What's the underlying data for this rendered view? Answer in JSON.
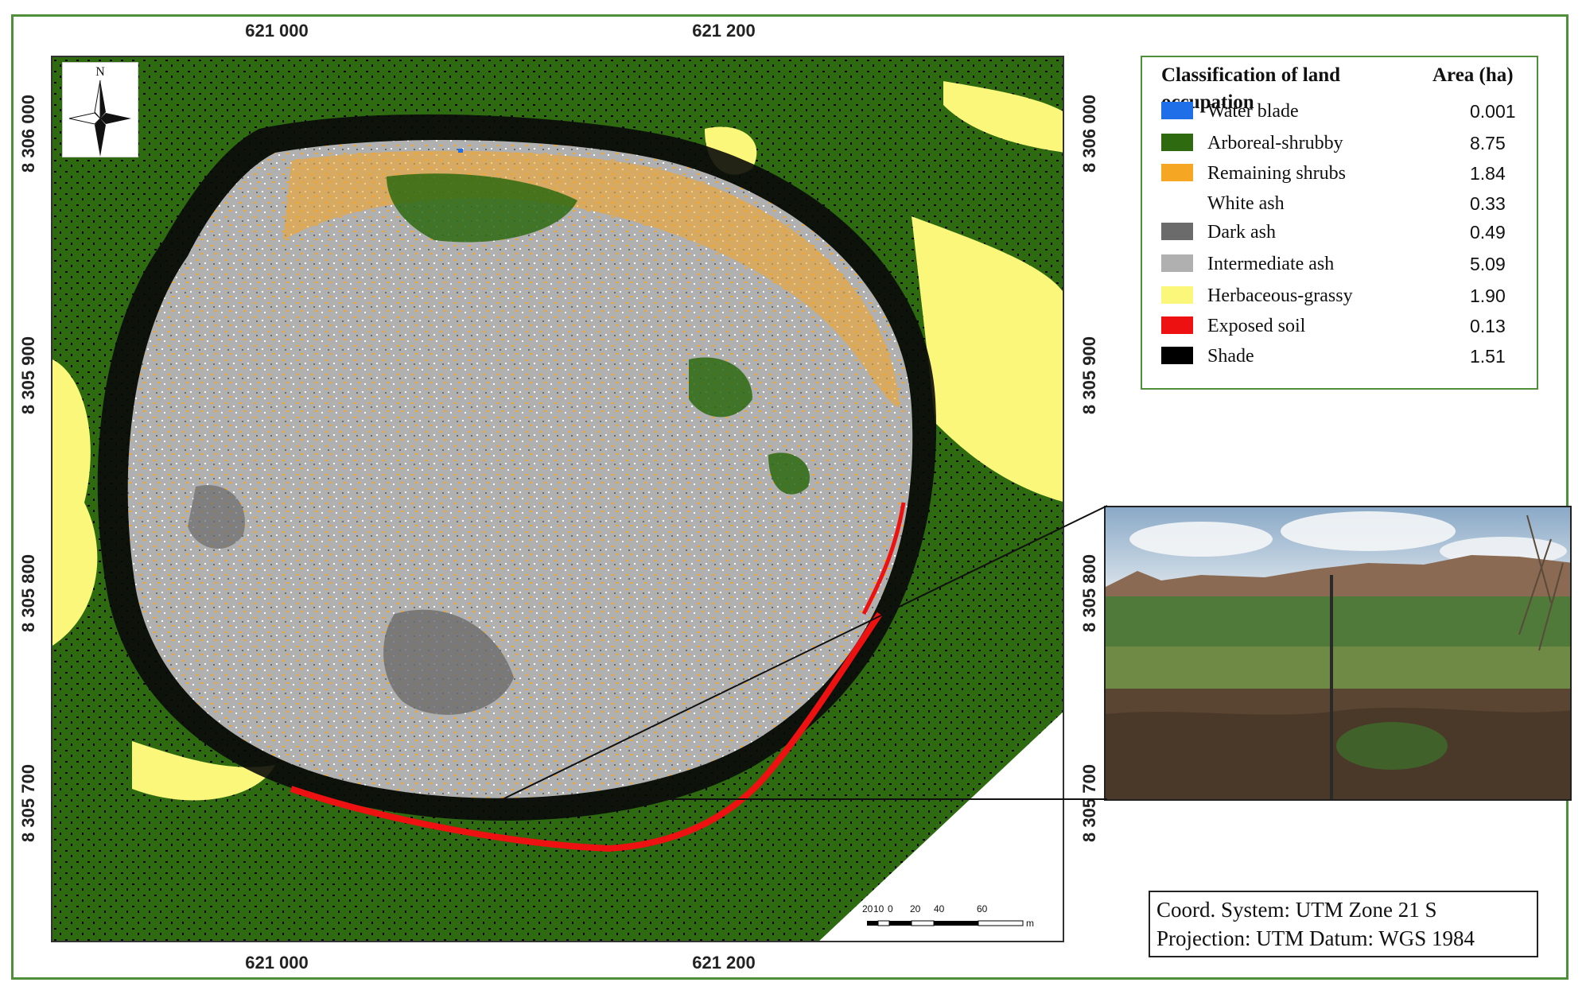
{
  "figure": {
    "axis_labels": {
      "top": [
        "621 000",
        "621 200"
      ],
      "bottom": [
        "621 000",
        "621 200"
      ],
      "left": [
        "8 306 000",
        "8 305 900",
        "8 305 800",
        "8 305 700"
      ],
      "right": [
        "8 306 000",
        "8 305 900",
        "8 305 800",
        "8 305 700"
      ]
    },
    "north_arrow": {
      "label": "N",
      "icon": "compass-rose-icon"
    },
    "legend": {
      "title": "Classification of land occupation",
      "area_header": "Area (ha)",
      "items": [
        {
          "label": "Water blade",
          "area": "0.001",
          "color": "#1e6fe8"
        },
        {
          "label": "Arboreal-shrubby",
          "area": "8.75",
          "color": "#2d6a10"
        },
        {
          "label": "Remaining shrubs",
          "area": "1.84",
          "color": "#f5a623"
        },
        {
          "label": "White ash",
          "area": "0.33",
          "color": "#ffffff"
        },
        {
          "label": "Dark ash",
          "area": "0.49",
          "color": "#6b6b6b"
        },
        {
          "label": "Intermediate ash",
          "area": "5.09",
          "color": "#b0b0b0"
        },
        {
          "label": "Herbaceous-grassy",
          "area": "1.90",
          "color": "#fbf77a"
        },
        {
          "label": "Exposed soil",
          "area": "0.13",
          "color": "#ee1111"
        },
        {
          "label": "Shade",
          "area": "1.51",
          "color": "#000000"
        }
      ]
    },
    "scale_bar": {
      "ticks": [
        "20",
        "10",
        "0",
        "20",
        "40",
        "60"
      ],
      "unit": "m"
    },
    "coordinate_info": {
      "line1": "Coord. System: UTM Zone 21 S",
      "line2": "Projection: UTM Datum: WGS 1984"
    }
  }
}
